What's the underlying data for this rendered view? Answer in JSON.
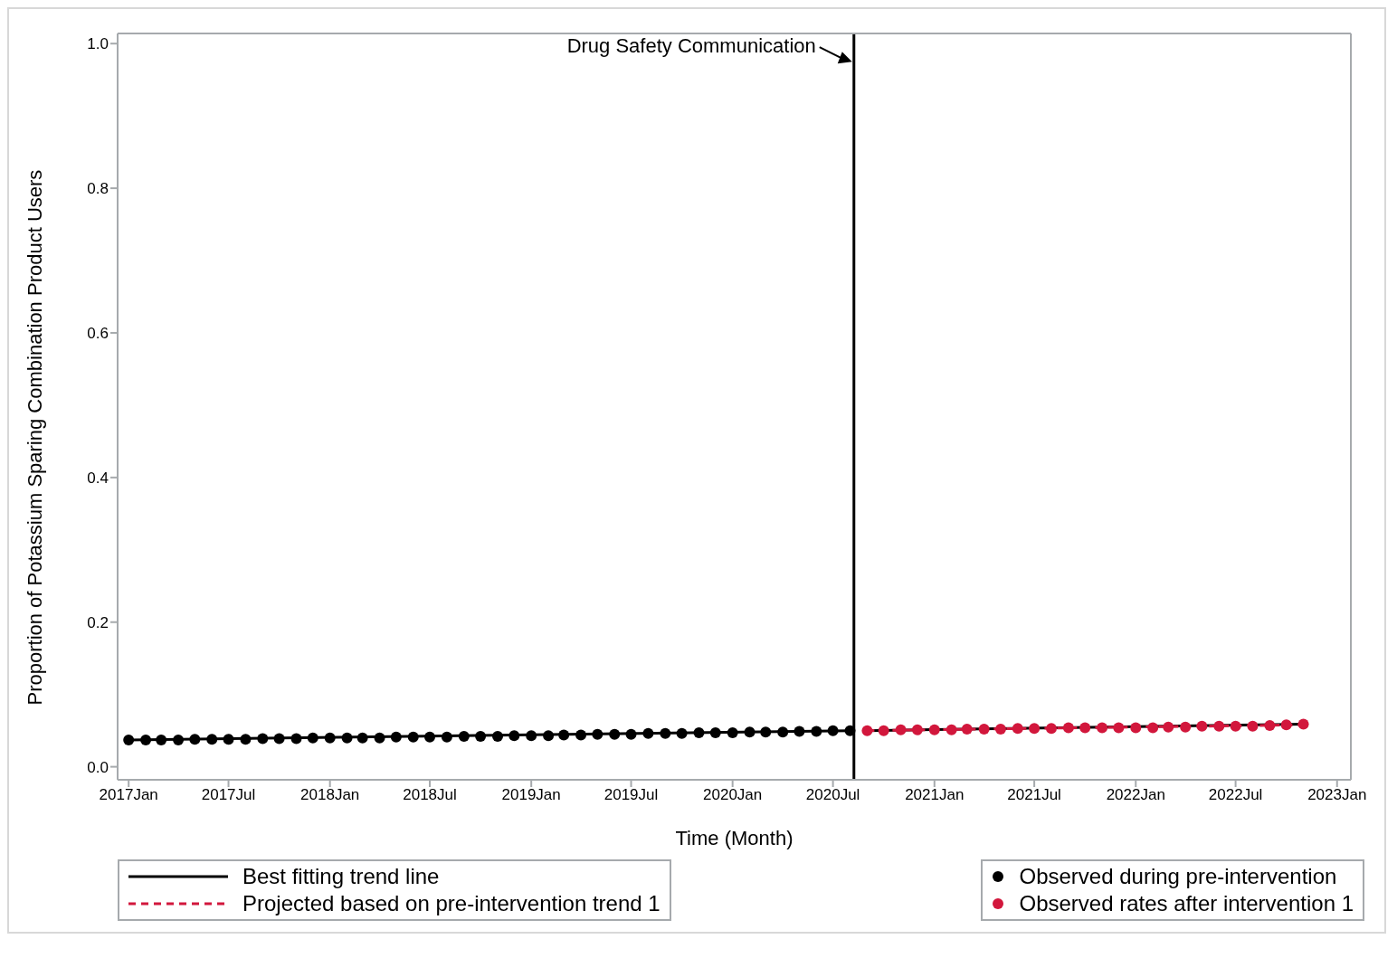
{
  "chart_data": {
    "type": "scatter",
    "xlabel": "Time (Month)",
    "ylabel": "Proportion of Potassium Sparing Combination Product Users",
    "xlim": [
      "2016-12-12",
      "2023-01-26"
    ],
    "ylim": [
      -0.018,
      1.014
    ],
    "xticks": [
      {
        "value": "2017-01",
        "label": "2017Jan"
      },
      {
        "value": "2017-07",
        "label": "2017Jul"
      },
      {
        "value": "2018-01",
        "label": "2018Jan"
      },
      {
        "value": "2018-07",
        "label": "2018Jul"
      },
      {
        "value": "2019-01",
        "label": "2019Jan"
      },
      {
        "value": "2019-07",
        "label": "2019Jul"
      },
      {
        "value": "2020-01",
        "label": "2020Jan"
      },
      {
        "value": "2020-07",
        "label": "2020Jul"
      },
      {
        "value": "2021-01",
        "label": "2021Jan"
      },
      {
        "value": "2021-07",
        "label": "2021Jul"
      },
      {
        "value": "2022-01",
        "label": "2022Jan"
      },
      {
        "value": "2022-07",
        "label": "2022Jul"
      },
      {
        "value": "2023-01",
        "label": "2023Jan"
      }
    ],
    "yticks": [
      {
        "value": 0,
        "label": "0.0"
      },
      0.2,
      0.4,
      0.6,
      0.8,
      {
        "value": 1,
        "label": "1.0"
      }
    ],
    "legend": "bottom",
    "ref_lines": [
      {
        "axis": "x",
        "value": "2020-08-08",
        "color": "#000000"
      }
    ],
    "annotations": [
      {
        "text": "Drug Safety Communication",
        "x": "2020-08-08",
        "y": 0.975
      }
    ],
    "series": [
      {
        "name": "Best fitting trend line",
        "type": "line",
        "color": "#000000",
        "line_style": "solid",
        "marker": "none",
        "x": [
          "2017-01",
          "2020-08"
        ],
        "values": [
          0.037,
          0.05
        ]
      },
      {
        "type": "line",
        "color": "#000000",
        "line_style": "solid",
        "marker": "none",
        "x": [
          "2020-09",
          "2022-11"
        ],
        "values": [
          0.05,
          0.059
        ]
      },
      {
        "name": "Projected based on pre-intervention trend 1",
        "type": "line",
        "color": "#d2173c",
        "line_style": "dashed",
        "marker": "none",
        "x": [
          "2020-09",
          "2022-11"
        ],
        "values": [
          0.05,
          0.058
        ]
      },
      {
        "name": "Observed during pre-intervention",
        "color": "#000000",
        "marker": "circle",
        "x": [
          "2017-01",
          "2017-02",
          "2017-03",
          "2017-04",
          "2017-05",
          "2017-06",
          "2017-07",
          "2017-08",
          "2017-09",
          "2017-10",
          "2017-11",
          "2017-12",
          "2018-01",
          "2018-02",
          "2018-03",
          "2018-04",
          "2018-05",
          "2018-06",
          "2018-07",
          "2018-08",
          "2018-09",
          "2018-10",
          "2018-11",
          "2018-12",
          "2019-01",
          "2019-02",
          "2019-03",
          "2019-04",
          "2019-05",
          "2019-06",
          "2019-07",
          "2019-08",
          "2019-09",
          "2019-10",
          "2019-11",
          "2019-12",
          "2020-01",
          "2020-02",
          "2020-03",
          "2020-04",
          "2020-05",
          "2020-06",
          "2020-07",
          "2020-08"
        ],
        "values": [
          0.037,
          0.037,
          0.037,
          0.037,
          0.038,
          0.038,
          0.038,
          0.038,
          0.039,
          0.039,
          0.039,
          0.04,
          0.04,
          0.04,
          0.04,
          0.04,
          0.041,
          0.041,
          0.041,
          0.041,
          0.042,
          0.042,
          0.042,
          0.043,
          0.043,
          0.043,
          0.044,
          0.044,
          0.045,
          0.045,
          0.045,
          0.046,
          0.046,
          0.046,
          0.047,
          0.047,
          0.047,
          0.048,
          0.048,
          0.048,
          0.049,
          0.049,
          0.05,
          0.05
        ]
      },
      {
        "name": "Observed rates after intervention 1",
        "color": "#d2173c",
        "marker": "circle",
        "x": [
          "2020-09",
          "2020-10",
          "2020-11",
          "2020-12",
          "2021-01",
          "2021-02",
          "2021-03",
          "2021-04",
          "2021-05",
          "2021-06",
          "2021-07",
          "2021-08",
          "2021-09",
          "2021-10",
          "2021-11",
          "2021-12",
          "2022-01",
          "2022-02",
          "2022-03",
          "2022-04",
          "2022-05",
          "2022-06",
          "2022-07",
          "2022-08",
          "2022-09",
          "2022-10",
          "2022-11"
        ],
        "values": [
          0.05,
          0.05,
          0.051,
          0.051,
          0.051,
          0.051,
          0.052,
          0.052,
          0.052,
          0.053,
          0.053,
          0.053,
          0.054,
          0.054,
          0.054,
          0.054,
          0.054,
          0.054,
          0.055,
          0.055,
          0.056,
          0.056,
          0.056,
          0.056,
          0.057,
          0.058,
          0.059
        ]
      }
    ]
  }
}
